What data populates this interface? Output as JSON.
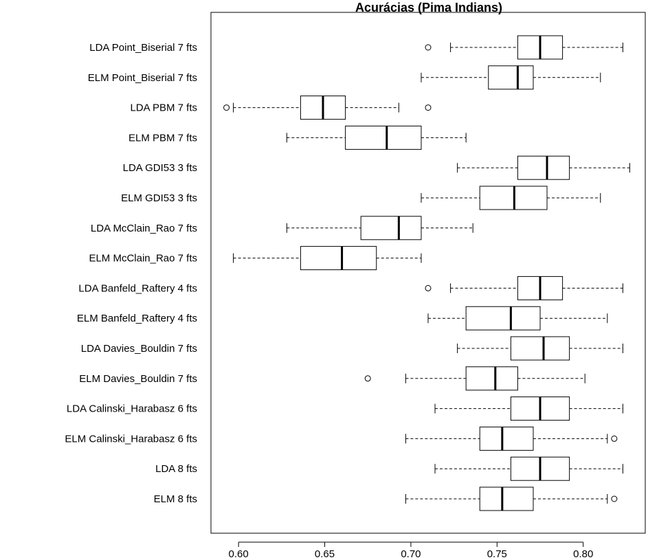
{
  "chart_data": {
    "type": "boxplot",
    "orientation": "horizontal",
    "title": "Acurácias (Pima Indians)",
    "xlabel": "",
    "ylabel": "",
    "xlim": [
      0.584,
      0.836
    ],
    "x_ticks": [
      "0.60",
      "0.65",
      "0.70",
      "0.75",
      "0.80"
    ],
    "x_tick_values": [
      0.6,
      0.65,
      0.7,
      0.75,
      0.8
    ],
    "series": [
      {
        "label": "LDA Point_Biserial 7 fts",
        "whisker_low": 0.723,
        "q1": 0.762,
        "median": 0.775,
        "q3": 0.788,
        "whisker_high": 0.823,
        "outliers": [
          0.71
        ]
      },
      {
        "label": "ELM Point_Biserial 7 fts",
        "whisker_low": 0.706,
        "q1": 0.745,
        "median": 0.762,
        "q3": 0.771,
        "whisker_high": 0.81,
        "outliers": []
      },
      {
        "label": "LDA PBM 7 fts",
        "whisker_low": 0.597,
        "q1": 0.636,
        "median": 0.649,
        "q3": 0.662,
        "whisker_high": 0.693,
        "outliers": [
          0.593,
          0.71
        ]
      },
      {
        "label": "ELM PBM 7 fts",
        "whisker_low": 0.628,
        "q1": 0.662,
        "median": 0.686,
        "q3": 0.706,
        "whisker_high": 0.732,
        "outliers": []
      },
      {
        "label": "LDA GDI53 3 fts",
        "whisker_low": 0.727,
        "q1": 0.762,
        "median": 0.779,
        "q3": 0.792,
        "whisker_high": 0.827,
        "outliers": []
      },
      {
        "label": "ELM GDI53 3 fts",
        "whisker_low": 0.706,
        "q1": 0.74,
        "median": 0.76,
        "q3": 0.779,
        "whisker_high": 0.81,
        "outliers": []
      },
      {
        "label": "LDA McClain_Rao 7 fts",
        "whisker_low": 0.628,
        "q1": 0.671,
        "median": 0.693,
        "q3": 0.706,
        "whisker_high": 0.736,
        "outliers": []
      },
      {
        "label": "ELM McClain_Rao 7 fts",
        "whisker_low": 0.597,
        "q1": 0.636,
        "median": 0.66,
        "q3": 0.68,
        "whisker_high": 0.706,
        "outliers": []
      },
      {
        "label": "LDA Banfeld_Raftery 4 fts",
        "whisker_low": 0.723,
        "q1": 0.762,
        "median": 0.775,
        "q3": 0.788,
        "whisker_high": 0.823,
        "outliers": [
          0.71
        ]
      },
      {
        "label": "ELM Banfeld_Raftery 4 fts",
        "whisker_low": 0.71,
        "q1": 0.732,
        "median": 0.758,
        "q3": 0.775,
        "whisker_high": 0.814,
        "outliers": []
      },
      {
        "label": "LDA Davies_Bouldin 7 fts",
        "whisker_low": 0.727,
        "q1": 0.758,
        "median": 0.777,
        "q3": 0.792,
        "whisker_high": 0.823,
        "outliers": []
      },
      {
        "label": "ELM Davies_Bouldin 7 fts",
        "whisker_low": 0.697,
        "q1": 0.732,
        "median": 0.749,
        "q3": 0.762,
        "whisker_high": 0.801,
        "outliers": [
          0.675
        ]
      },
      {
        "label": "LDA Calinski_Harabasz 6 fts",
        "whisker_low": 0.714,
        "q1": 0.758,
        "median": 0.775,
        "q3": 0.792,
        "whisker_high": 0.823,
        "outliers": []
      },
      {
        "label": "ELM Calinski_Harabasz 6 fts",
        "whisker_low": 0.697,
        "q1": 0.74,
        "median": 0.753,
        "q3": 0.771,
        "whisker_high": 0.814,
        "outliers": [
          0.818
        ]
      },
      {
        "label": "LDA 8 fts",
        "whisker_low": 0.714,
        "q1": 0.758,
        "median": 0.775,
        "q3": 0.792,
        "whisker_high": 0.823,
        "outliers": []
      },
      {
        "label": "ELM 8 fts",
        "whisker_low": 0.697,
        "q1": 0.74,
        "median": 0.753,
        "q3": 0.771,
        "whisker_high": 0.814,
        "outliers": [
          0.818
        ]
      }
    ],
    "colors": {
      "box_fill": "#ffffff",
      "stroke": "#000000"
    }
  }
}
